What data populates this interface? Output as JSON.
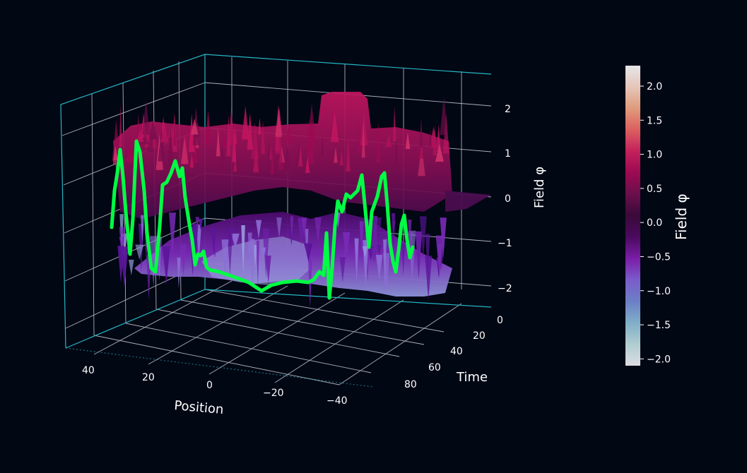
{
  "chart_data": {
    "type": "surface3d",
    "title": "",
    "axes": {
      "x": {
        "label": "Position",
        "ticks": [
          "40",
          "20",
          "0",
          "−20",
          "−40"
        ],
        "range": [
          -50,
          50
        ]
      },
      "y": {
        "label": "Time",
        "ticks": [
          "0",
          "20",
          "40",
          "60",
          "80"
        ],
        "range": [
          0,
          100
        ]
      },
      "z": {
        "label": "Field φ",
        "ticks": [
          "−2",
          "−1",
          "0",
          "1",
          "2"
        ],
        "range": [
          -2.2,
          2.2
        ]
      }
    },
    "colorbar": {
      "label": "Field φ",
      "range": [
        -2.1,
        2.3
      ],
      "ticks": [
        "2.0",
        "1.5",
        "1.0",
        "0.5",
        "0.0",
        "−0.5",
        "−1.0",
        "−1.5",
        "−2.0"
      ],
      "colormap": [
        "#dcdde2",
        "#b0cdd0",
        "#80aec8",
        "#6b7fc6",
        "#7b5ccb",
        "#7a1da8",
        "#4b0a5e",
        "#3a0a3a",
        "#6a0f4c",
        "#9c0a52",
        "#c3205c",
        "#dc5f5f",
        "#e09a7c",
        "#e6c6b9",
        "#e6e6ea"
      ]
    },
    "highlight_line": {
      "color": "#00ff44",
      "description_values": [
        -0.6,
        0.4,
        1.2,
        0.2,
        -1.0,
        0.8,
        -0.9,
        0.6,
        0.9,
        -0.5,
        -1.3,
        -1.2,
        -1.1,
        -0.8,
        0.5,
        0.9,
        -0.4,
        0.4,
        -0.9,
        -0.2,
        -0.9
      ]
    },
    "grid": true,
    "pane_edge_color": "#27b6c4",
    "grid_color": "#c8ccd6"
  }
}
